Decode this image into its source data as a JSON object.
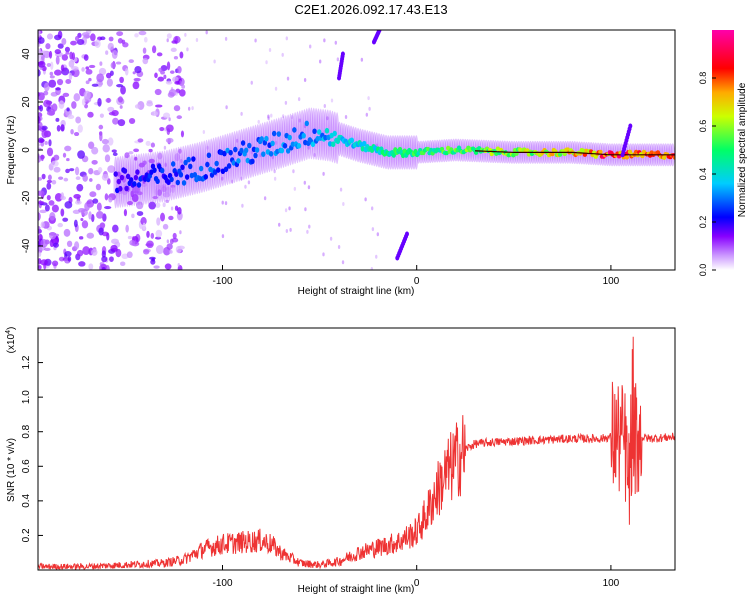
{
  "title": "C2E1.2026.092.17.43.E13",
  "chart_data": [
    {
      "type": "heatmap",
      "title": "C2E1.2026.092.17.43.E13",
      "xlabel": "Height of straight line (km)",
      "ylabel": "Frequency (Hz)",
      "xlim": [
        -195,
        133
      ],
      "ylim": [
        -50,
        50
      ],
      "x_ticks": [
        -100,
        0,
        100
      ],
      "x_tick_labels": [
        "-100",
        "0",
        "100"
      ],
      "y_ticks": [
        -40,
        -20,
        0,
        20,
        40
      ],
      "y_tick_labels": [
        "-40",
        "-20",
        "0",
        "20",
        "40"
      ],
      "colorbar": {
        "label": "Normalized spectral amplitude",
        "range": [
          0,
          1
        ],
        "ticks": [
          0.0,
          0.2,
          0.4,
          0.6,
          0.8
        ],
        "tick_labels": [
          "0.0",
          "0.2",
          "0.4",
          "0.6",
          "0.8"
        ],
        "colormap": "rainbow (white-violet-blue-cyan-green-yellow-red-magenta)"
      },
      "ridge": {
        "description": "Doppler frequency ridge vs height",
        "points": [
          {
            "x": -150,
            "y": -13,
            "amp": 0.22
          },
          {
            "x": -130,
            "y": -11,
            "amp": 0.25
          },
          {
            "x": -110,
            "y": -7,
            "amp": 0.28
          },
          {
            "x": -90,
            "y": -2,
            "amp": 0.3
          },
          {
            "x": -70,
            "y": 3,
            "amp": 0.32
          },
          {
            "x": -55,
            "y": 7,
            "amp": 0.33
          },
          {
            "x": -45,
            "y": 6,
            "amp": 0.38
          },
          {
            "x": -30,
            "y": 2,
            "amp": 0.42
          },
          {
            "x": -15,
            "y": -1,
            "amp": 0.48
          },
          {
            "x": 0,
            "y": -1,
            "amp": 0.52
          },
          {
            "x": 20,
            "y": 0,
            "amp": 0.55
          },
          {
            "x": 50,
            "y": -1,
            "amp": 0.62
          },
          {
            "x": 80,
            "y": -1,
            "amp": 0.72
          },
          {
            "x": 100,
            "y": -2,
            "amp": 0.9
          },
          {
            "x": 110,
            "y": -2,
            "amp": 0.85
          },
          {
            "x": 133,
            "y": -2,
            "amp": 0.8
          }
        ]
      }
    },
    {
      "type": "line",
      "xlabel": "Height of straight line (km)",
      "ylabel": "SNR (10 * v/v)",
      "y_scale_label": "(x10^4)",
      "xlim": [
        -195,
        133
      ],
      "ylim": [
        0,
        1.4
      ],
      "x_ticks": [
        -100,
        0,
        100
      ],
      "x_tick_labels": [
        "-100",
        "0",
        "100"
      ],
      "y_ticks": [
        0.2,
        0.4,
        0.6,
        0.8,
        1.0,
        1.2
      ],
      "y_tick_labels": [
        "0.2",
        "0.4",
        "0.6",
        "0.8",
        "1.0",
        "1.2"
      ],
      "series": [
        {
          "name": "SNR",
          "color": "#ee3333",
          "x": [
            -195,
            -170,
            -150,
            -130,
            -120,
            -110,
            -100,
            -90,
            -80,
            -75,
            -70,
            -60,
            -50,
            -40,
            -30,
            -20,
            -10,
            0,
            5,
            10,
            15,
            20,
            25,
            30,
            40,
            60,
            80,
            95,
            100,
            105,
            108,
            110,
            112,
            115,
            120,
            133
          ],
          "y": [
            0.02,
            0.02,
            0.03,
            0.04,
            0.06,
            0.12,
            0.15,
            0.16,
            0.17,
            0.15,
            0.1,
            0.04,
            0.03,
            0.05,
            0.1,
            0.13,
            0.16,
            0.22,
            0.32,
            0.45,
            0.55,
            0.63,
            0.7,
            0.73,
            0.74,
            0.75,
            0.76,
            0.76,
            0.77,
            0.76,
            0.7,
            0.4,
            0.75,
            0.77,
            0.76,
            0.77
          ]
        }
      ]
    }
  ]
}
